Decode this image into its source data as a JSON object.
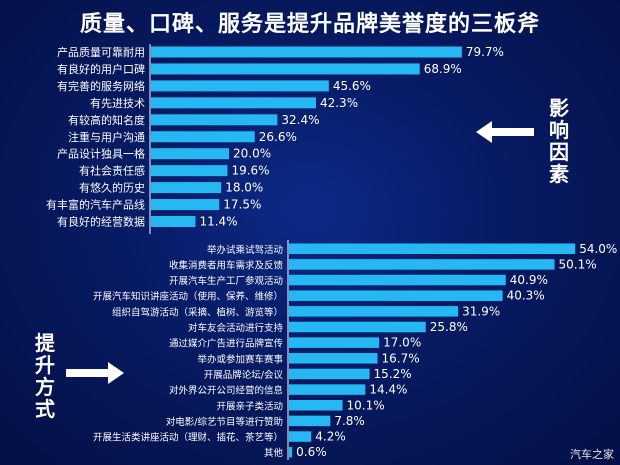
{
  "title": "质量、口碑、服务是提升品牌美誉度的三板斧",
  "side_labels": {
    "influence": "影响因素",
    "method": "提升方式"
  },
  "watermark": "汽车之家",
  "colors": {
    "bar": "#26b8f2",
    "text": "#ffffff",
    "background": "#071a63"
  },
  "chart_data": [
    {
      "type": "bar",
      "orientation": "horizontal",
      "categories": [
        "产品质量可靠耐用",
        "有良好的用户口碑",
        "有完善的服务网络",
        "有先进技术",
        "有较高的知名度",
        "注重与用户沟通",
        "产品设计独具一格",
        "有社会责任感",
        "有悠久的历史",
        "有丰富的汽车产品线",
        "有良好的经营数据"
      ],
      "values": [
        79.7,
        68.9,
        45.6,
        42.3,
        32.4,
        26.6,
        20.0,
        19.6,
        18.0,
        17.5,
        11.4
      ],
      "labels": [
        "79.7%",
        "68.9%",
        "45.6%",
        "42.3%",
        "32.4%",
        "26.6%",
        "20.0%",
        "19.6%",
        "18.0%",
        "17.5%",
        "11.4%"
      ],
      "unit": "%"
    },
    {
      "type": "bar",
      "orientation": "horizontal",
      "categories": [
        "举办试乘试驾活动",
        "收集消费者用车需求及反馈",
        "开展汽车生产工厂参观活动",
        "开展汽车知识讲座活动（使用、保养、维修）",
        "组织自驾游活动（采摘、植树、游览等）",
        "对车友会活动进行支持",
        "通过媒介广告进行品牌宣传",
        "举办或参加赛车赛事",
        "开展品牌论坛/会议",
        "对外界公开公司经营的信息",
        "开展亲子类活动",
        "对电影/综艺节目等进行赞助",
        "开展生活类讲座活动（理财、插花、茶艺等）",
        "其他"
      ],
      "values": [
        54.0,
        50.1,
        40.9,
        40.3,
        31.9,
        25.8,
        17.0,
        16.7,
        15.2,
        14.4,
        10.1,
        7.8,
        4.2,
        0.6
      ],
      "labels": [
        "54.0%",
        "50.1%",
        "40.9%",
        "40.3%",
        "31.9%",
        "25.8%",
        "17.0%",
        "16.7%",
        "15.2%",
        "14.4%",
        "10.1%",
        "7.8%",
        "4.2%",
        "0.6%"
      ],
      "unit": "%"
    }
  ]
}
